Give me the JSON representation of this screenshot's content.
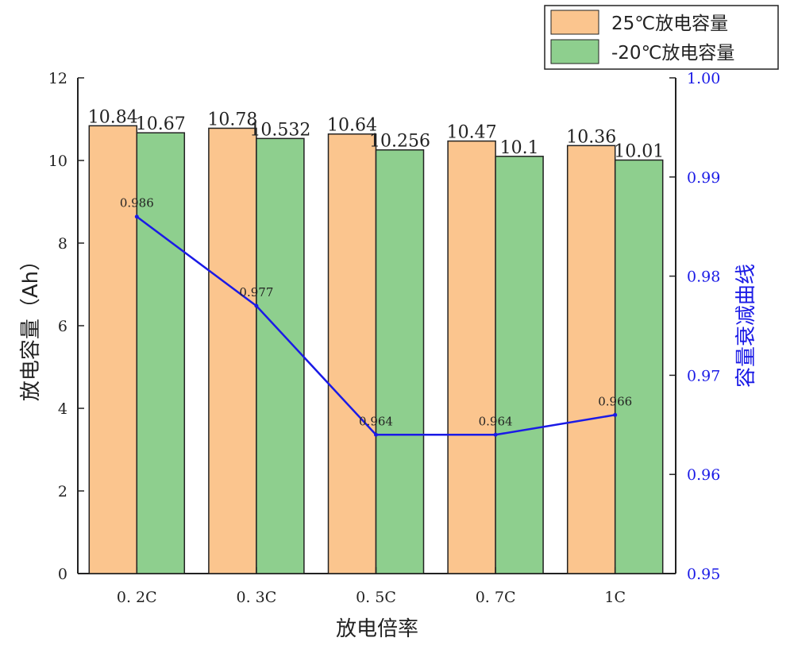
{
  "chart_data": {
    "type": "bar",
    "categories": [
      "0.2C",
      "0.3C",
      "0.5C",
      "0.7C",
      "1C"
    ],
    "category_labels": [
      "0. 2C",
      "0. 3C",
      "0. 5C",
      "0. 7C",
      "1C"
    ],
    "series": [
      {
        "name": "25℃放电容量",
        "values": [
          10.84,
          10.78,
          10.64,
          10.47,
          10.36
        ],
        "labels": [
          "10.84",
          "10.78",
          "10.64",
          "10.47",
          "10.36"
        ],
        "color": "#fbc58e"
      },
      {
        "name": "-20℃放电容量",
        "values": [
          10.67,
          10.532,
          10.256,
          10.1,
          10.01
        ],
        "labels": [
          "10.67",
          "10.532",
          "10.256",
          "10.1",
          "10.01"
        ],
        "color": "#8ecf8e"
      }
    ],
    "line_series": {
      "name": "容量衰减曲线",
      "values": [
        0.986,
        0.977,
        0.964,
        0.964,
        0.966
      ],
      "labels": [
        "0.986",
        "0.977",
        "0.964",
        "0.964",
        "0.966"
      ],
      "color": "#1a1ae6",
      "axis": "right"
    },
    "xlabel": "放电倍率",
    "ylabel": "放电容量（Ah）",
    "ylabel_right": "容量衰减曲线",
    "ylim": [
      0,
      12
    ],
    "yticks": [
      0,
      2,
      4,
      6,
      8,
      10,
      12
    ],
    "ylim_right": [
      0.95,
      1.0
    ],
    "yticks_right": [
      "0.95",
      "0.96",
      "0.97",
      "0.98",
      "0.99",
      "1.00"
    ],
    "legend_position": "top-right",
    "grid": false
  }
}
